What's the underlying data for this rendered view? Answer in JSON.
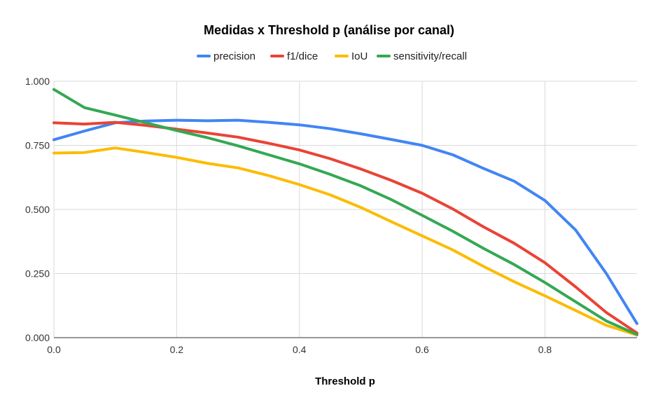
{
  "chart_data": {
    "type": "line",
    "title": "Medidas x Threshold p (análise por canal)",
    "xlabel": "Threshold p",
    "ylabel": "",
    "xlim": [
      0,
      0.95
    ],
    "ylim": [
      0,
      1
    ],
    "x_ticks": [
      "0.0",
      "0.2",
      "0.4",
      "0.6",
      "0.8"
    ],
    "y_ticks": [
      "0.000",
      "0.250",
      "0.500",
      "0.750",
      "1.000"
    ],
    "grid": true,
    "legend_position": "top",
    "x": [
      0,
      0.05,
      0.1,
      0.15,
      0.2,
      0.25,
      0.3,
      0.35,
      0.4,
      0.45,
      0.5,
      0.55,
      0.6,
      0.65,
      0.7,
      0.75,
      0.8,
      0.85,
      0.9,
      0.95
    ],
    "series": [
      {
        "name": "precision",
        "color": "#4285F4",
        "values": [
          0.772,
          0.806,
          0.838,
          0.845,
          0.848,
          0.846,
          0.848,
          0.84,
          0.83,
          0.815,
          0.795,
          0.773,
          0.75,
          0.713,
          0.66,
          0.61,
          0.535,
          0.42,
          0.25,
          0.055
        ]
      },
      {
        "name": "f1/dice",
        "color": "#EA4335",
        "values": [
          0.838,
          0.833,
          0.84,
          0.828,
          0.813,
          0.798,
          0.782,
          0.758,
          0.732,
          0.698,
          0.658,
          0.613,
          0.563,
          0.502,
          0.432,
          0.368,
          0.292,
          0.198,
          0.098,
          0.018
        ]
      },
      {
        "name": "IoU",
        "color": "#FBBC04",
        "values": [
          0.72,
          0.722,
          0.74,
          0.722,
          0.703,
          0.68,
          0.662,
          0.632,
          0.597,
          0.557,
          0.508,
          0.452,
          0.397,
          0.342,
          0.278,
          0.218,
          0.163,
          0.106,
          0.048,
          0.01
        ]
      },
      {
        "name": "sensitivity/recall",
        "color": "#34A853",
        "values": [
          0.968,
          0.897,
          0.868,
          0.838,
          0.808,
          0.78,
          0.748,
          0.713,
          0.678,
          0.637,
          0.592,
          0.538,
          0.477,
          0.415,
          0.348,
          0.285,
          0.215,
          0.14,
          0.065,
          0.012
        ]
      }
    ]
  }
}
